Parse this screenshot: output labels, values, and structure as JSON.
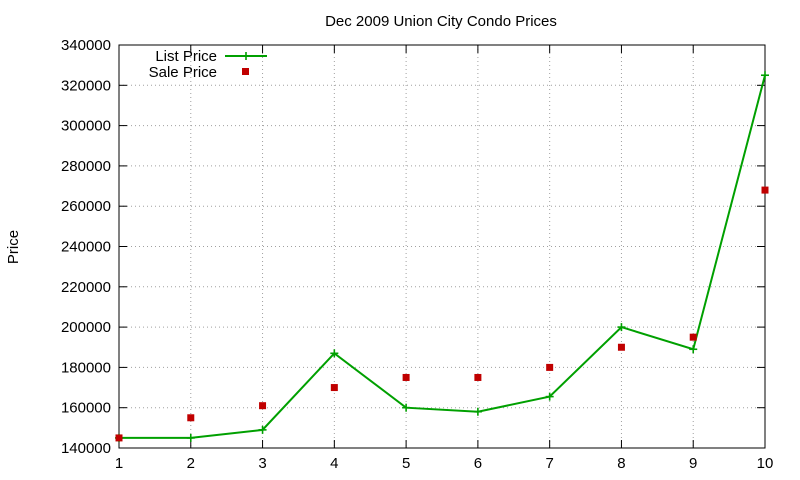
{
  "chart_data": {
    "type": "line",
    "title": "Dec 2009 Union City Condo Prices",
    "xlabel": "",
    "ylabel": "Price",
    "x": [
      1,
      2,
      3,
      4,
      5,
      6,
      7,
      8,
      9,
      10
    ],
    "xlim": [
      1,
      10
    ],
    "ylim": [
      140000,
      340000
    ],
    "xticks": [
      1,
      2,
      3,
      4,
      5,
      6,
      7,
      8,
      9,
      10
    ],
    "yticks": [
      140000,
      160000,
      180000,
      200000,
      220000,
      240000,
      260000,
      280000,
      300000,
      320000,
      340000
    ],
    "grid": true,
    "legend": "top-left",
    "series": [
      {
        "name": "List Price",
        "style": "line+cross",
        "color": "#00a000",
        "values": [
          145000,
          145000,
          149000,
          187000,
          160000,
          158000,
          165500,
          200000,
          189000,
          325000
        ]
      },
      {
        "name": "Sale Price",
        "style": "square-points",
        "color": "#c00000",
        "values": [
          145000,
          155000,
          161000,
          170000,
          175000,
          175000,
          180000,
          190000,
          195000,
          268000
        ]
      }
    ]
  }
}
